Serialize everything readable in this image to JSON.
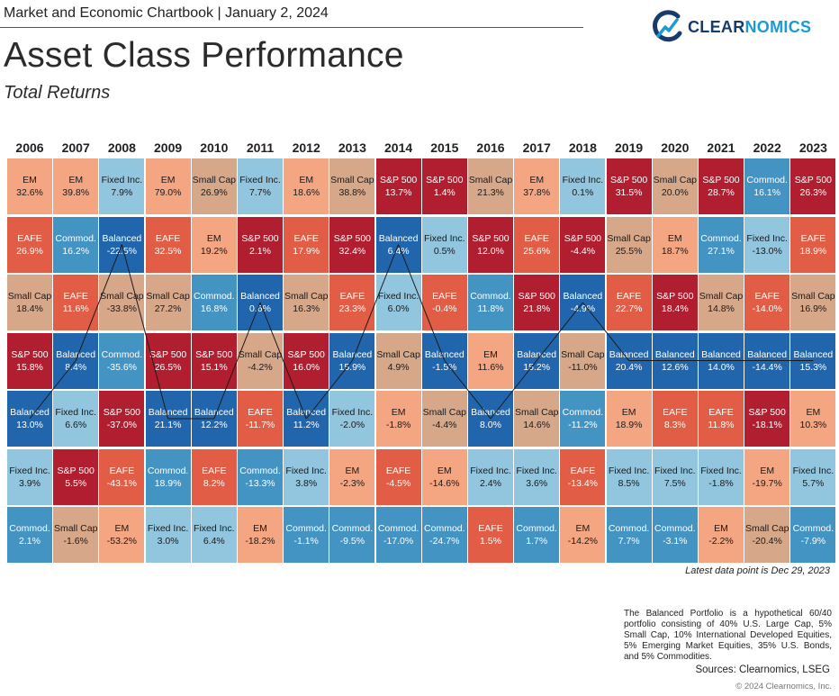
{
  "header": {
    "top_line": "Market and Economic Chartbook | January 2, 2024",
    "title": "Asset Class Performance",
    "subtitle": "Total Returns"
  },
  "logo": {
    "icon": "clearnomics-logo-icon",
    "text_primary": "CLEAR",
    "text_accent": "NOMICS"
  },
  "colors": {
    "S&P 500": "#b01e2f",
    "EAFE": "#e15d45",
    "Small Cap": "#d7a78a",
    "EM": "#f4a582",
    "Fixed Inc.": "#92c5de",
    "Commod.": "#4393c3",
    "Balanced": "#2166ac"
  },
  "chart_data": {
    "type": "table",
    "title": "Asset Class Performance",
    "subtitle": "Total Returns",
    "years": [
      "2006",
      "2007",
      "2008",
      "2009",
      "2010",
      "2011",
      "2012",
      "2013",
      "2014",
      "2015",
      "2016",
      "2017",
      "2018",
      "2019",
      "2020",
      "2021",
      "2022",
      "2023"
    ],
    "columns": [
      [
        {
          "name": "EM",
          "value": "32.6%"
        },
        {
          "name": "EAFE",
          "value": "26.9%"
        },
        {
          "name": "Small Cap",
          "value": "18.4%"
        },
        {
          "name": "S&P 500",
          "value": "15.8%"
        },
        {
          "name": "Balanced",
          "value": "13.0%"
        },
        {
          "name": "Fixed Inc.",
          "value": "3.9%"
        },
        {
          "name": "Commod.",
          "value": "2.1%"
        }
      ],
      [
        {
          "name": "EM",
          "value": "39.8%"
        },
        {
          "name": "Commod.",
          "value": "16.2%"
        },
        {
          "name": "EAFE",
          "value": "11.6%"
        },
        {
          "name": "Balanced",
          "value": "8.4%"
        },
        {
          "name": "Fixed Inc.",
          "value": "6.6%"
        },
        {
          "name": "S&P 500",
          "value": "5.5%"
        },
        {
          "name": "Small Cap",
          "value": "-1.6%"
        }
      ],
      [
        {
          "name": "Fixed Inc.",
          "value": "7.9%"
        },
        {
          "name": "Balanced",
          "value": "-22.5%"
        },
        {
          "name": "Small Cap",
          "value": "-33.8%"
        },
        {
          "name": "Commod.",
          "value": "-35.6%"
        },
        {
          "name": "S&P 500",
          "value": "-37.0%"
        },
        {
          "name": "EAFE",
          "value": "-43.1%"
        },
        {
          "name": "EM",
          "value": "-53.2%"
        }
      ],
      [
        {
          "name": "EM",
          "value": "79.0%"
        },
        {
          "name": "EAFE",
          "value": "32.5%"
        },
        {
          "name": "Small Cap",
          "value": "27.2%"
        },
        {
          "name": "S&P 500",
          "value": "26.5%"
        },
        {
          "name": "Balanced",
          "value": "21.1%"
        },
        {
          "name": "Commod.",
          "value": "18.9%"
        },
        {
          "name": "Fixed Inc.",
          "value": "3.0%"
        }
      ],
      [
        {
          "name": "Small Cap",
          "value": "26.9%"
        },
        {
          "name": "EM",
          "value": "19.2%"
        },
        {
          "name": "Commod.",
          "value": "16.8%"
        },
        {
          "name": "S&P 500",
          "value": "15.1%"
        },
        {
          "name": "Balanced",
          "value": "12.2%"
        },
        {
          "name": "EAFE",
          "value": "8.2%"
        },
        {
          "name": "Fixed Inc.",
          "value": "6.4%"
        }
      ],
      [
        {
          "name": "Fixed Inc.",
          "value": "7.7%"
        },
        {
          "name": "S&P 500",
          "value": "2.1%"
        },
        {
          "name": "Balanced",
          "value": "0.6%"
        },
        {
          "name": "Small Cap",
          "value": "-4.2%"
        },
        {
          "name": "EAFE",
          "value": "-11.7%"
        },
        {
          "name": "Commod.",
          "value": "-13.3%"
        },
        {
          "name": "EM",
          "value": "-18.2%"
        }
      ],
      [
        {
          "name": "EM",
          "value": "18.6%"
        },
        {
          "name": "EAFE",
          "value": "17.9%"
        },
        {
          "name": "Small Cap",
          "value": "16.3%"
        },
        {
          "name": "S&P 500",
          "value": "16.0%"
        },
        {
          "name": "Balanced",
          "value": "11.2%"
        },
        {
          "name": "Fixed Inc.",
          "value": "3.8%"
        },
        {
          "name": "Commod.",
          "value": "-1.1%"
        }
      ],
      [
        {
          "name": "Small Cap",
          "value": "38.8%"
        },
        {
          "name": "S&P 500",
          "value": "32.4%"
        },
        {
          "name": "EAFE",
          "value": "23.3%"
        },
        {
          "name": "Balanced",
          "value": "15.9%"
        },
        {
          "name": "Fixed Inc.",
          "value": "-2.0%"
        },
        {
          "name": "EM",
          "value": "-2.3%"
        },
        {
          "name": "Commod.",
          "value": "-9.5%"
        }
      ],
      [
        {
          "name": "S&P 500",
          "value": "13.7%"
        },
        {
          "name": "Balanced",
          "value": "6.4%"
        },
        {
          "name": "Fixed Inc.",
          "value": "6.0%"
        },
        {
          "name": "Small Cap",
          "value": "4.9%"
        },
        {
          "name": "EM",
          "value": "-1.8%"
        },
        {
          "name": "EAFE",
          "value": "-4.5%"
        },
        {
          "name": "Commod.",
          "value": "-17.0%"
        }
      ],
      [
        {
          "name": "S&P 500",
          "value": "1.4%"
        },
        {
          "name": "Fixed Inc.",
          "value": "0.5%"
        },
        {
          "name": "EAFE",
          "value": "-0.4%"
        },
        {
          "name": "Balanced",
          "value": "-1.5%"
        },
        {
          "name": "Small Cap",
          "value": "-4.4%"
        },
        {
          "name": "EM",
          "value": "-14.6%"
        },
        {
          "name": "Commod.",
          "value": "-24.7%"
        }
      ],
      [
        {
          "name": "Small Cap",
          "value": "21.3%"
        },
        {
          "name": "S&P 500",
          "value": "12.0%"
        },
        {
          "name": "Commod.",
          "value": "11.8%"
        },
        {
          "name": "EM",
          "value": "11.6%"
        },
        {
          "name": "Balanced",
          "value": "8.0%"
        },
        {
          "name": "Fixed Inc.",
          "value": "2.4%"
        },
        {
          "name": "EAFE",
          "value": "1.5%"
        }
      ],
      [
        {
          "name": "EM",
          "value": "37.8%"
        },
        {
          "name": "EAFE",
          "value": "25.6%"
        },
        {
          "name": "S&P 500",
          "value": "21.8%"
        },
        {
          "name": "Balanced",
          "value": "15.2%"
        },
        {
          "name": "Small Cap",
          "value": "14.6%"
        },
        {
          "name": "Fixed Inc.",
          "value": "3.6%"
        },
        {
          "name": "Commod.",
          "value": "1.7%"
        }
      ],
      [
        {
          "name": "Fixed Inc.",
          "value": "0.1%"
        },
        {
          "name": "S&P 500",
          "value": "-4.4%"
        },
        {
          "name": "Balanced",
          "value": "-4.9%"
        },
        {
          "name": "Small Cap",
          "value": "-11.0%"
        },
        {
          "name": "Commod.",
          "value": "-11.2%"
        },
        {
          "name": "EAFE",
          "value": "-13.4%"
        },
        {
          "name": "EM",
          "value": "-14.2%"
        }
      ],
      [
        {
          "name": "S&P 500",
          "value": "31.5%"
        },
        {
          "name": "Small Cap",
          "value": "25.5%"
        },
        {
          "name": "EAFE",
          "value": "22.7%"
        },
        {
          "name": "Balanced",
          "value": "20.4%"
        },
        {
          "name": "EM",
          "value": "18.9%"
        },
        {
          "name": "Fixed Inc.",
          "value": "8.5%"
        },
        {
          "name": "Commod.",
          "value": "7.7%"
        }
      ],
      [
        {
          "name": "Small Cap",
          "value": "20.0%"
        },
        {
          "name": "EM",
          "value": "18.7%"
        },
        {
          "name": "S&P 500",
          "value": "18.4%"
        },
        {
          "name": "Balanced",
          "value": "12.6%"
        },
        {
          "name": "EAFE",
          "value": "8.3%"
        },
        {
          "name": "Fixed Inc.",
          "value": "7.5%"
        },
        {
          "name": "Commod.",
          "value": "-3.1%"
        }
      ],
      [
        {
          "name": "S&P 500",
          "value": "28.7%"
        },
        {
          "name": "Commod.",
          "value": "27.1%"
        },
        {
          "name": "Small Cap",
          "value": "14.8%"
        },
        {
          "name": "Balanced",
          "value": "14.0%"
        },
        {
          "name": "EAFE",
          "value": "11.8%"
        },
        {
          "name": "Fixed Inc.",
          "value": "-1.8%"
        },
        {
          "name": "EM",
          "value": "-2.2%"
        }
      ],
      [
        {
          "name": "Commod.",
          "value": "16.1%"
        },
        {
          "name": "Fixed Inc.",
          "value": "-13.0%"
        },
        {
          "name": "EAFE",
          "value": "-14.0%"
        },
        {
          "name": "Balanced",
          "value": "-14.4%"
        },
        {
          "name": "S&P 500",
          "value": "-18.1%"
        },
        {
          "name": "EM",
          "value": "-19.7%"
        },
        {
          "name": "Small Cap",
          "value": "-20.4%"
        }
      ],
      [
        {
          "name": "S&P 500",
          "value": "26.3%"
        },
        {
          "name": "EAFE",
          "value": "18.9%"
        },
        {
          "name": "Small Cap",
          "value": "16.9%"
        },
        {
          "name": "Balanced",
          "value": "15.3%"
        },
        {
          "name": "EM",
          "value": "10.3%"
        },
        {
          "name": "Fixed Inc.",
          "value": "5.7%"
        },
        {
          "name": "Commod.",
          "value": "-7.9%"
        }
      ]
    ]
  },
  "notes": {
    "date_note": "Latest data point is Dec 29, 2023",
    "footnote": "The Balanced Portfolio is a hypothetical 60/40 portfolio consisting of 40% U.S. Large Cap, 5% Small Cap, 10% International Developed Equities, 5% Emerging Market Equities, 35% U.S. Bonds, and 5% Commodities.",
    "sources": "Sources: Clearnomics, LSEG",
    "copyright": "© 2024 Clearnomics, Inc."
  }
}
